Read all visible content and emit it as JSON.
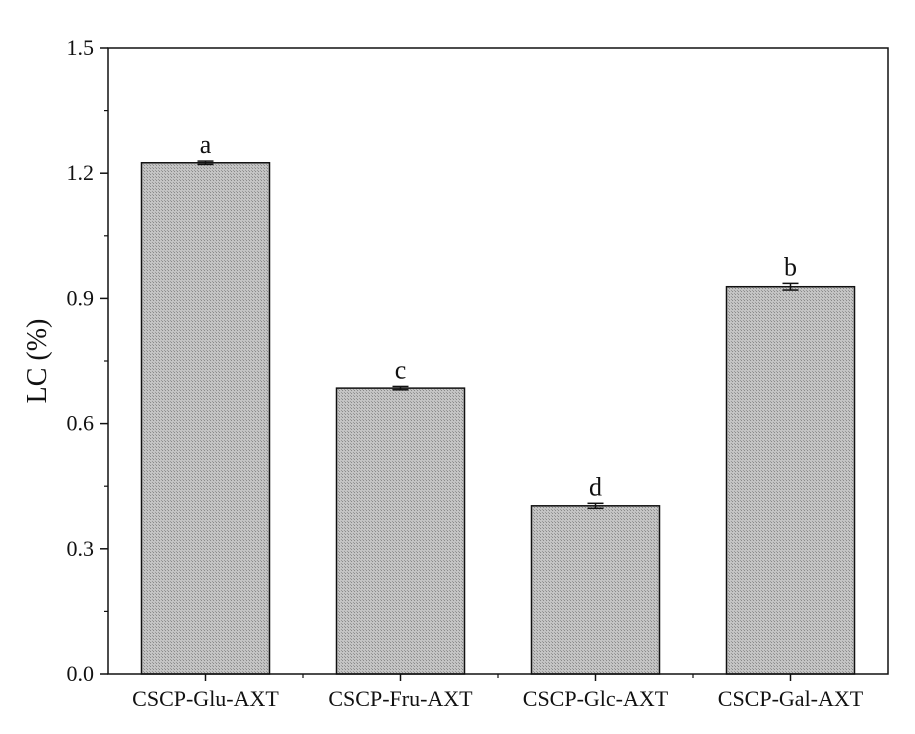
{
  "chart_data": {
    "type": "bar",
    "title": "",
    "xlabel": "",
    "ylabel": "LC (%)",
    "ylim": [
      0,
      1.5
    ],
    "yticks": [
      0.0,
      0.3,
      0.6,
      0.9,
      1.2,
      1.5
    ],
    "ytick_labels": [
      "0.0",
      "0.3",
      "0.6",
      "0.9",
      "1.2",
      "1.5"
    ],
    "categories": [
      "CSCP-Glu-AXT",
      "CSCP-Fru-AXT",
      "CSCP-Glc-AXT",
      "CSCP-Gal-AXT"
    ],
    "values": [
      1.225,
      0.685,
      0.403,
      0.928
    ],
    "errors": [
      0.004,
      0.004,
      0.006,
      0.008
    ],
    "significance_letters": [
      "a",
      "c",
      "d",
      "b"
    ],
    "grid": false,
    "legend": "none",
    "bar_fill": "#b5b5b5",
    "bar_edge": "#111111"
  }
}
